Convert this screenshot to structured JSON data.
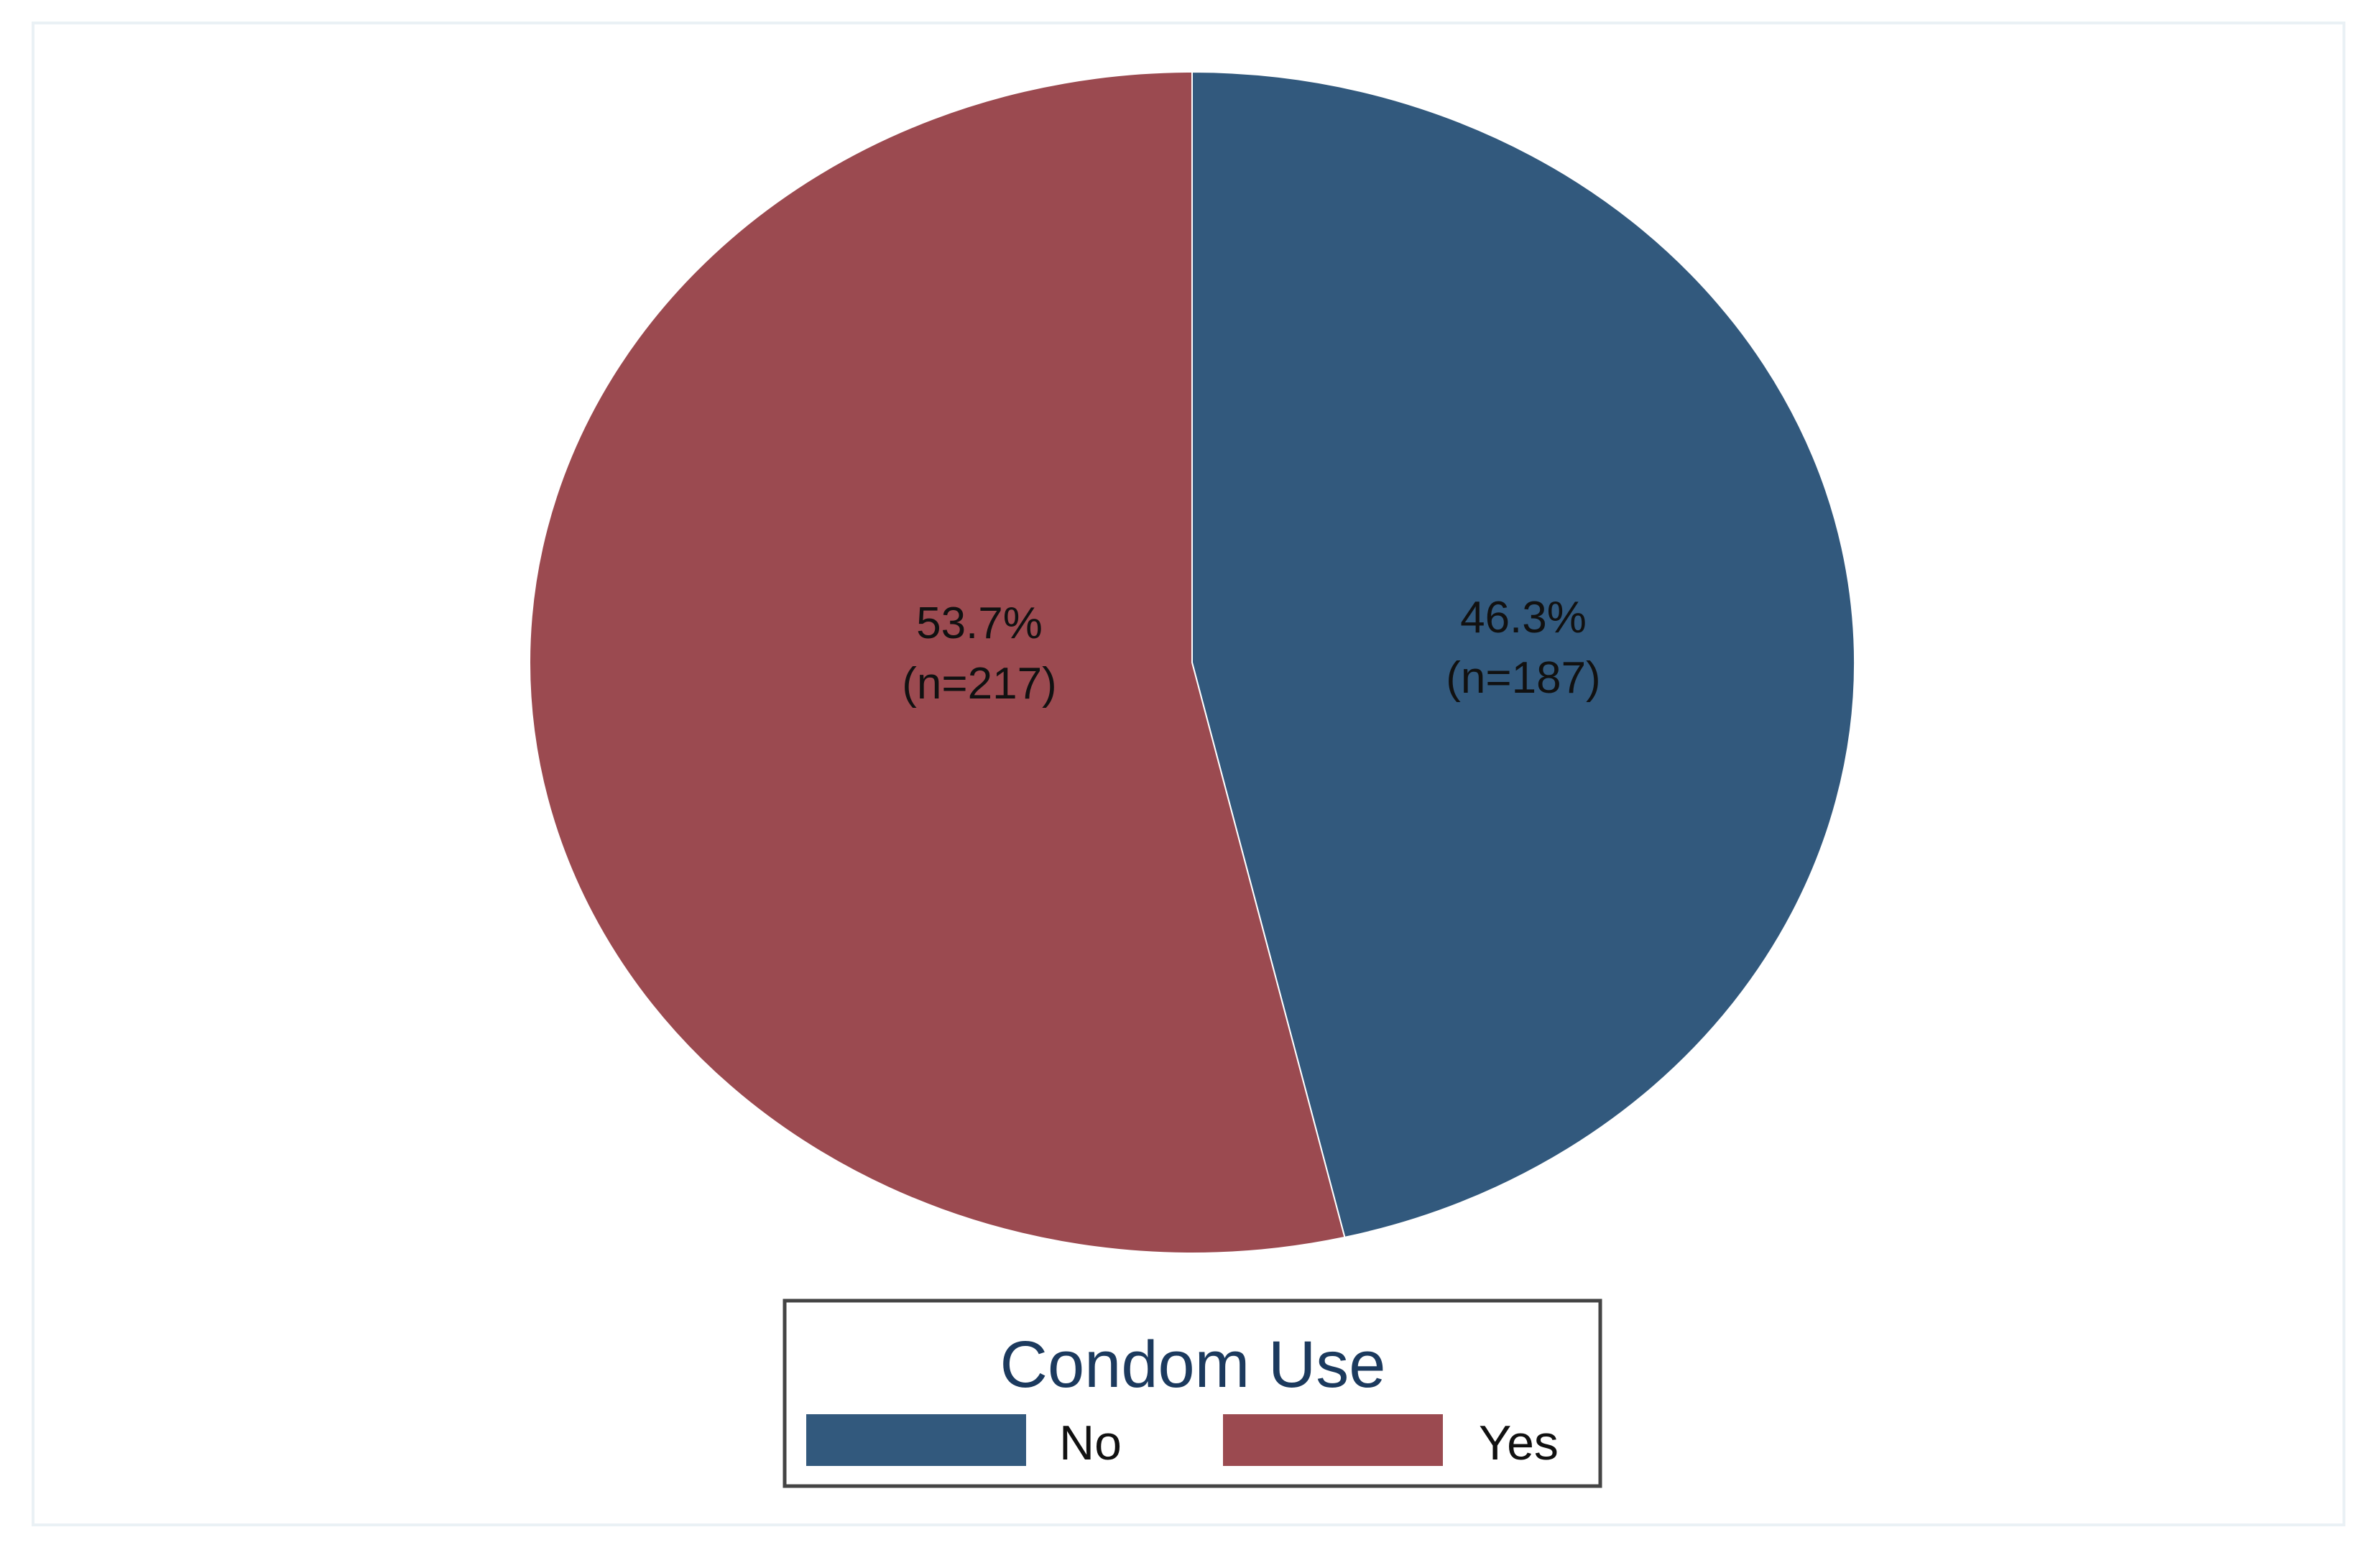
{
  "chart_data": {
    "type": "pie",
    "slices": [
      {
        "category": "No",
        "percent": 46.3,
        "count": 187,
        "pct_label": "46.3%",
        "n_label": "(n=187)",
        "color": "#32597d"
      },
      {
        "category": "Yes",
        "percent": 53.7,
        "count": 217,
        "pct_label": "53.7%",
        "n_label": "(n=217)",
        "color": "#9b4a50"
      }
    ],
    "start_angle": "12 o'clock",
    "direction": "clockwise",
    "legend": {
      "title": "Condom Use",
      "placement": "bottom-center",
      "entries": [
        "No",
        "Yes"
      ]
    }
  },
  "colors": {
    "background": "#ffffff",
    "frame_border": "#eaf1f5",
    "legend_border": "#444444",
    "legend_title": "#1c3a5e"
  }
}
